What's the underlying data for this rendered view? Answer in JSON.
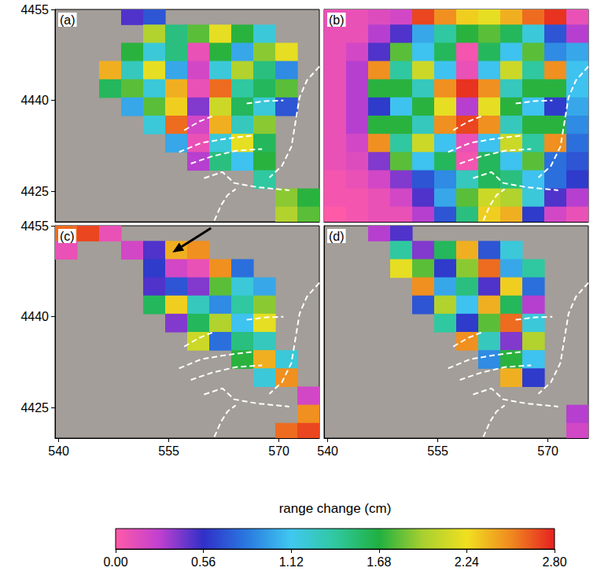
{
  "chart_data": [
    {
      "type": "heatmap",
      "label": "(a)",
      "xlim": [
        539.5,
        575.5
      ],
      "ylim": [
        4420,
        4455
      ],
      "xticks": [
        540,
        555,
        570
      ],
      "yticks": [
        4425,
        4440,
        4455
      ],
      "tick_labels": "y",
      "x": [
        541,
        544,
        547,
        550,
        553,
        556,
        559,
        562,
        565,
        568,
        571,
        574
      ],
      "y": [
        4454,
        4451,
        4448,
        4445,
        4442,
        4439,
        4436,
        4433,
        4430,
        4427,
        4424,
        4421
      ],
      "cells": [
        [
          null,
          null,
          null,
          0.5,
          0.7,
          null,
          null,
          null,
          null,
          null,
          null,
          null
        ],
        [
          null,
          null,
          null,
          null,
          2.0,
          1.5,
          1.8,
          2.2,
          1.7,
          1.2,
          null,
          null
        ],
        [
          null,
          null,
          null,
          1.7,
          1.2,
          1.5,
          0.1,
          1.7,
          1.0,
          1.9,
          2.2,
          null
        ],
        [
          null,
          null,
          2.4,
          1.3,
          2.2,
          1.0,
          0.2,
          1.2,
          2.0,
          1.5,
          0.9,
          null
        ],
        [
          null,
          null,
          1.6,
          1.8,
          1.2,
          2.4,
          0.1,
          2.6,
          1.4,
          1.6,
          1.8,
          null
        ],
        [
          null,
          null,
          null,
          1.0,
          1.8,
          2.3,
          0.4,
          2.1,
          1.6,
          1.2,
          0.7,
          null
        ],
        [
          null,
          null,
          null,
          null,
          1.2,
          2.6,
          0.2,
          2.4,
          1.3,
          1.9,
          null,
          null
        ],
        [
          null,
          null,
          null,
          null,
          null,
          1.0,
          0.1,
          1.2,
          2.2,
          1.6,
          null,
          null
        ],
        [
          null,
          null,
          null,
          null,
          null,
          null,
          0.3,
          1.5,
          1.1,
          1.7,
          null,
          null
        ],
        [
          null,
          null,
          null,
          null,
          null,
          null,
          null,
          null,
          null,
          1.4,
          null,
          null
        ],
        [
          null,
          null,
          null,
          null,
          null,
          null,
          null,
          null,
          null,
          null,
          1.9,
          1.7
        ],
        [
          null,
          null,
          null,
          null,
          null,
          null,
          null,
          null,
          null,
          null,
          2.0,
          1.8
        ]
      ]
    },
    {
      "type": "heatmap",
      "label": "(b)",
      "xlim": [
        539.5,
        575.5
      ],
      "ylim": [
        4420,
        4455
      ],
      "xticks": [
        540,
        555,
        570
      ],
      "yticks": [
        4425,
        4440,
        4455
      ],
      "tick_labels": false,
      "x": [
        541,
        544,
        547,
        550,
        553,
        556,
        559,
        562,
        565,
        568,
        571,
        574
      ],
      "y": [
        4454,
        4451,
        4448,
        4445,
        4442,
        4439,
        4436,
        4433,
        4430,
        4427,
        4424,
        4421
      ],
      "cells": [
        [
          0.1,
          0.1,
          0.15,
          0.2,
          2.7,
          2.5,
          2.3,
          2.2,
          2.4,
          2.6,
          2.75,
          0.1
        ],
        [
          0.1,
          0.1,
          0.3,
          0.5,
          1.0,
          1.4,
          1.7,
          1.8,
          1.6,
          1.2,
          0.7,
          0.3
        ],
        [
          0.1,
          0.2,
          0.5,
          1.8,
          1.1,
          1.6,
          0.05,
          1.6,
          1.1,
          1.8,
          0.9,
          1.0
        ],
        [
          0.1,
          0.3,
          2.5,
          1.4,
          2.1,
          1.1,
          0.1,
          1.1,
          2.1,
          1.4,
          2.5,
          1.1
        ],
        [
          0.1,
          0.3,
          1.7,
          1.7,
          1.3,
          2.5,
          2.75,
          2.5,
          1.3,
          1.7,
          1.7,
          1.1
        ],
        [
          0.1,
          0.3,
          0.6,
          1.1,
          1.7,
          2.2,
          0.3,
          2.2,
          1.7,
          1.1,
          0.6,
          1.0
        ],
        [
          0.1,
          0.3,
          1.7,
          1.7,
          1.3,
          2.5,
          2.7,
          2.5,
          1.3,
          1.7,
          1.7,
          0.9
        ],
        [
          0.1,
          0.2,
          2.5,
          1.4,
          2.1,
          1.1,
          0.1,
          1.1,
          2.1,
          1.4,
          2.5,
          0.8
        ],
        [
          0.1,
          0.15,
          0.4,
          1.8,
          1.1,
          1.6,
          0.05,
          1.6,
          1.1,
          1.8,
          0.8,
          0.7
        ],
        [
          0.05,
          0.1,
          0.2,
          0.4,
          0.7,
          0.9,
          1.3,
          1.6,
          1.5,
          1.1,
          0.8,
          0.6
        ],
        [
          0.05,
          0.05,
          0.1,
          0.2,
          0.5,
          1.0,
          1.8,
          2.1,
          2.0,
          1.2,
          0.5,
          0.3
        ],
        [
          0,
          0.05,
          0.1,
          0.1,
          0.3,
          0.7,
          1.5,
          2.3,
          2.4,
          0.6,
          0.2,
          0.1
        ]
      ]
    },
    {
      "type": "heatmap",
      "label": "(c)",
      "xlim": [
        539.5,
        575.5
      ],
      "ylim": [
        4420,
        4455
      ],
      "xticks": [
        540,
        555,
        570
      ],
      "yticks": [
        4425,
        4440,
        4455
      ],
      "x": [
        541,
        544,
        547,
        550,
        553,
        556,
        559,
        562,
        565,
        568,
        571,
        574
      ],
      "y": [
        4454,
        4451,
        4448,
        4445,
        4442,
        4439,
        4436,
        4433,
        4430,
        4427,
        4424,
        4421
      ],
      "cells": [
        [
          2.6,
          2.7,
          0.1,
          null,
          null,
          null,
          null,
          null,
          null,
          null,
          null,
          null
        ],
        [
          0.1,
          null,
          null,
          0.2,
          0.5,
          2.4,
          2.5,
          null,
          null,
          null,
          null,
          null
        ],
        [
          null,
          null,
          null,
          null,
          0.6,
          0.2,
          0.1,
          2.5,
          0.8,
          null,
          null,
          null
        ],
        [
          null,
          null,
          null,
          null,
          0.5,
          0.7,
          0.4,
          1.8,
          1.2,
          1.0,
          null,
          null
        ],
        [
          null,
          null,
          null,
          null,
          1.6,
          2.3,
          1.3,
          0.9,
          1.4,
          1.9,
          null,
          null
        ],
        [
          null,
          null,
          null,
          null,
          null,
          0.4,
          1.6,
          2.0,
          1.1,
          2.2,
          null,
          null
        ],
        [
          null,
          null,
          null,
          null,
          null,
          null,
          2.1,
          0.8,
          1.5,
          1.3,
          null,
          null
        ],
        [
          null,
          null,
          null,
          null,
          null,
          null,
          null,
          null,
          1.7,
          2.4,
          1.2,
          null
        ],
        [
          null,
          null,
          null,
          null,
          null,
          null,
          null,
          null,
          null,
          1.2,
          2.5,
          null
        ],
        [
          null,
          null,
          null,
          null,
          null,
          null,
          null,
          null,
          null,
          null,
          null,
          0.2
        ],
        [
          null,
          null,
          null,
          null,
          null,
          null,
          null,
          null,
          null,
          null,
          null,
          2.5
        ],
        [
          null,
          null,
          null,
          null,
          null,
          null,
          null,
          null,
          null,
          null,
          2.6,
          2.7
        ]
      ]
    },
    {
      "type": "heatmap",
      "label": "(d)",
      "xlim": [
        539.5,
        575.5
      ],
      "ylim": [
        4420,
        4455
      ],
      "xticks": [
        540,
        555,
        570
      ],
      "yticks": [
        4425,
        4440,
        4455
      ],
      "tick_labels": "x",
      "x": [
        541,
        544,
        547,
        550,
        553,
        556,
        559,
        562,
        565,
        568,
        571,
        574
      ],
      "y": [
        4454,
        4451,
        4448,
        4445,
        4442,
        4439,
        4436,
        4433,
        4430,
        4427,
        4424,
        4421
      ],
      "cells": [
        [
          null,
          null,
          0.3,
          0.5,
          null,
          null,
          null,
          null,
          null,
          null,
          null,
          null
        ],
        [
          null,
          null,
          null,
          1.4,
          0.4,
          1.6,
          2.4,
          0.7,
          1.2,
          null,
          null,
          null
        ],
        [
          null,
          null,
          null,
          2.2,
          1.8,
          0.6,
          1.9,
          2.6,
          1.0,
          1.4,
          null,
          null
        ],
        [
          null,
          null,
          null,
          null,
          2.5,
          1.0,
          1.5,
          0.5,
          2.3,
          0.8,
          null,
          null
        ],
        [
          null,
          null,
          null,
          null,
          0.7,
          2.0,
          1.1,
          2.4,
          1.6,
          0.3,
          null,
          null
        ],
        [
          null,
          null,
          null,
          null,
          null,
          1.4,
          0.6,
          1.8,
          2.6,
          1.2,
          null,
          null
        ],
        [
          null,
          null,
          null,
          null,
          null,
          null,
          2.5,
          1.3,
          0.4,
          2.0,
          null,
          null
        ],
        [
          null,
          null,
          null,
          null,
          null,
          null,
          null,
          0.9,
          1.7,
          1.1,
          null,
          null
        ],
        [
          null,
          null,
          null,
          null,
          null,
          null,
          null,
          null,
          2.4,
          0.6,
          null,
          null
        ],
        [
          null,
          null,
          null,
          null,
          null,
          null,
          null,
          null,
          null,
          null,
          null,
          null
        ],
        [
          null,
          null,
          null,
          null,
          null,
          null,
          null,
          null,
          null,
          null,
          null,
          0.3
        ],
        [
          null,
          null,
          null,
          null,
          null,
          null,
          null,
          null,
          null,
          null,
          null,
          0.2
        ]
      ]
    }
  ],
  "faults": [
    [
      [
        575.5,
        4445.6
      ],
      [
        573.8,
        4443.3
      ],
      [
        572.8,
        4440.5
      ],
      [
        572.3,
        4436.8
      ],
      [
        571.7,
        4432.4
      ],
      [
        570.4,
        4429.2
      ],
      [
        568.7,
        4427.3
      ]
    ],
    [
      [
        565.6,
        4439.5
      ],
      [
        568.2,
        4439.9
      ],
      [
        570.6,
        4440.0
      ]
    ],
    [
      [
        557.1,
        4435.1
      ],
      [
        559.1,
        4436.5
      ],
      [
        560.9,
        4437.4
      ]
    ],
    [
      [
        556.4,
        4431.5
      ],
      [
        559.4,
        4433.0
      ],
      [
        562.8,
        4433.7
      ],
      [
        566.3,
        4434.2
      ]
    ],
    [
      [
        558.0,
        4429.6
      ],
      [
        560.9,
        4430.8
      ],
      [
        564.1,
        4431.7
      ],
      [
        567.7,
        4432.0
      ]
    ],
    [
      [
        559.8,
        4427.2
      ],
      [
        562.3,
        4428.2
      ],
      [
        563.9,
        4426.4
      ],
      [
        567.1,
        4425.7
      ],
      [
        571.4,
        4425.2
      ]
    ],
    [
      [
        561.2,
        4420.2
      ],
      [
        562.1,
        4422.7
      ],
      [
        563.0,
        4424.4
      ],
      [
        564.1,
        4425.4
      ]
    ]
  ],
  "colorbar": {
    "title": "range change (cm)",
    "range": [
      0,
      2.8
    ],
    "ticks": [
      {
        "value": 0,
        "label": "0.00"
      },
      0.56,
      1.12,
      1.68,
      2.24,
      {
        "value": 2.8,
        "label": "2.80"
      }
    ]
  }
}
